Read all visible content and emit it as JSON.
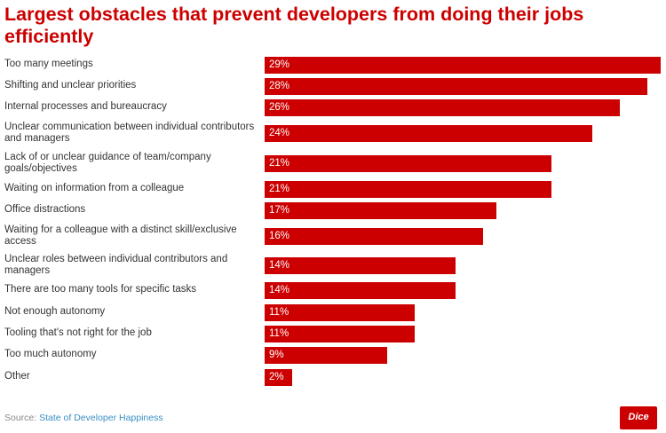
{
  "chart_data": {
    "type": "bar",
    "orientation": "horizontal",
    "title": "Largest obstacles that prevent developers from doing their jobs efficiently",
    "categories": [
      "Too many meetings",
      "Shifting and unclear priorities",
      "Internal processes and bureaucracy",
      "Unclear communication between individual contributors and managers",
      "Lack of or unclear guidance of team/company goals/objectives",
      "Waiting on information from a colleague",
      "Office distractions",
      "Waiting for a colleague with a distinct skill/exclusive access",
      "Unclear roles between individual contributors and managers",
      "There are too many tools for specific tasks",
      "Not enough autonomy",
      "Tooling that's not right for the job",
      "Too much autonomy",
      "Other"
    ],
    "values": [
      29,
      28,
      26,
      24,
      21,
      21,
      17,
      16,
      14,
      14,
      11,
      11,
      9,
      2
    ],
    "value_labels": [
      "29%",
      "28%",
      "26%",
      "24%",
      "21%",
      "21%",
      "17%",
      "16%",
      "14%",
      "14%",
      "11%",
      "11%",
      "9%",
      "2%"
    ],
    "unit": "%",
    "grid": false,
    "bar_color": "#cc0000"
  },
  "source": {
    "prefix": "Source:",
    "link": "State of Developer Happiness"
  },
  "logo": "Dice"
}
